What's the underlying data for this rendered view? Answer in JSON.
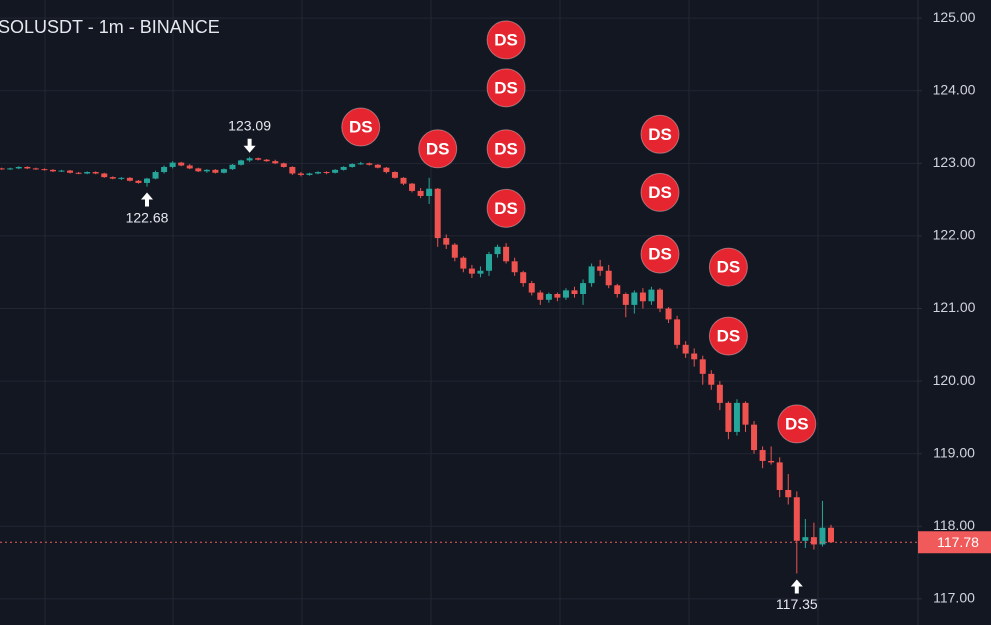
{
  "chart_data": {
    "type": "candlestick",
    "title": "SOLUSDT - 1m - BINANCE",
    "up_color": "#26a69a",
    "down_color": "#ef5350",
    "grid": true,
    "ylim": [
      116.64,
      125.25
    ],
    "yticks": [
      {
        "value": 117,
        "label": "117.00"
      },
      {
        "value": 118,
        "label": "118.00"
      },
      {
        "value": 119,
        "label": "119.00"
      },
      {
        "value": 120,
        "label": "120.00"
      },
      {
        "value": 121,
        "label": "121.00"
      },
      {
        "value": 122,
        "label": "122.00"
      },
      {
        "value": 123,
        "label": "123.00"
      },
      {
        "value": 124,
        "label": "124.00"
      },
      {
        "value": 125,
        "label": "125.00"
      }
    ],
    "open": [
      122.93,
      122.92,
      122.93,
      122.95,
      122.93,
      122.92,
      122.91,
      122.89,
      122.9,
      122.87,
      122.86,
      122.88,
      122.86,
      122.81,
      122.79,
      122.8,
      122.76,
      122.73,
      122.79,
      122.88,
      122.95,
      123.01,
      122.97,
      122.93,
      122.89,
      122.91,
      122.87,
      122.92,
      122.98,
      123.04,
      123.07,
      123.05,
      123.03,
      123.0,
      122.95,
      122.86,
      122.84,
      122.86,
      122.88,
      122.87,
      122.91,
      122.95,
      122.99,
      123.0,
      122.98,
      122.94,
      122.88,
      122.8,
      122.72,
      122.62,
      122.55,
      122.65,
      121.97,
      121.88,
      121.7,
      121.55,
      121.48,
      121.52,
      121.75,
      121.85,
      121.65,
      121.5,
      121.35,
      121.22,
      121.12,
      121.2,
      121.15,
      121.25,
      121.2,
      121.35,
      121.58,
      121.52,
      121.32,
      121.2,
      121.05,
      121.22,
      121.1,
      121.26,
      121.0,
      120.85,
      120.5,
      120.38,
      120.3,
      120.1,
      119.95,
      119.7,
      119.3,
      119.7,
      119.4,
      119.05,
      118.9,
      118.88,
      118.5,
      118.4,
      117.8,
      117.85,
      117.75,
      117.98
    ],
    "high": [
      122.94,
      122.94,
      122.96,
      122.96,
      122.94,
      122.93,
      122.92,
      122.91,
      122.91,
      122.88,
      122.89,
      122.89,
      122.87,
      122.82,
      122.81,
      122.81,
      122.77,
      122.8,
      122.9,
      122.97,
      123.03,
      123.02,
      122.99,
      122.94,
      122.92,
      122.92,
      122.93,
      122.99,
      123.05,
      123.09,
      123.08,
      123.06,
      123.05,
      123.01,
      122.96,
      122.88,
      122.87,
      122.89,
      122.89,
      122.92,
      122.96,
      123.0,
      123.02,
      123.01,
      122.99,
      122.95,
      122.89,
      122.81,
      122.73,
      122.66,
      122.8,
      122.66,
      122.02,
      121.9,
      121.72,
      121.6,
      121.58,
      121.78,
      121.88,
      121.9,
      121.7,
      121.52,
      121.38,
      121.25,
      121.22,
      121.22,
      121.28,
      121.3,
      121.4,
      121.62,
      121.67,
      121.6,
      121.34,
      121.22,
      121.25,
      121.28,
      121.3,
      121.28,
      121.02,
      120.9,
      120.55,
      120.45,
      120.35,
      120.15,
      120.0,
      119.72,
      119.75,
      119.72,
      119.45,
      119.1,
      119.1,
      118.95,
      118.72,
      118.48,
      118.1,
      118.05,
      118.35,
      118.02
    ],
    "low": [
      122.91,
      122.91,
      122.92,
      122.92,
      122.91,
      122.9,
      122.88,
      122.88,
      122.86,
      122.85,
      122.85,
      122.85,
      122.8,
      122.78,
      122.77,
      122.75,
      122.72,
      122.68,
      122.78,
      122.86,
      122.93,
      122.96,
      122.92,
      122.88,
      122.87,
      122.86,
      122.86,
      122.91,
      122.97,
      123.02,
      123.04,
      123.02,
      122.99,
      122.94,
      122.84,
      122.82,
      122.83,
      122.85,
      122.85,
      122.86,
      122.9,
      122.94,
      122.98,
      122.97,
      122.93,
      122.86,
      122.79,
      122.7,
      122.6,
      122.52,
      122.44,
      121.85,
      121.82,
      121.65,
      121.5,
      121.42,
      121.43,
      121.45,
      121.7,
      121.62,
      121.45,
      121.3,
      121.18,
      121.05,
      121.08,
      121.1,
      121.12,
      121.15,
      121.05,
      121.3,
      121.45,
      121.28,
      121.15,
      120.88,
      120.93,
      121.0,
      121.05,
      120.95,
      120.8,
      120.45,
      120.32,
      120.2,
      119.95,
      119.88,
      119.6,
      119.2,
      119.25,
      119.3,
      119.0,
      118.8,
      118.85,
      118.4,
      118.3,
      117.35,
      117.7,
      117.68,
      117.72,
      117.78
    ],
    "close": [
      122.92,
      122.93,
      122.95,
      122.93,
      122.92,
      122.91,
      122.89,
      122.9,
      122.87,
      122.86,
      122.88,
      122.86,
      122.81,
      122.79,
      122.8,
      122.76,
      122.73,
      122.79,
      122.88,
      122.95,
      123.01,
      122.97,
      122.93,
      122.89,
      122.91,
      122.87,
      122.92,
      122.98,
      123.04,
      123.07,
      123.05,
      123.03,
      123.0,
      122.95,
      122.86,
      122.84,
      122.86,
      122.88,
      122.87,
      122.91,
      122.95,
      122.99,
      123.0,
      122.98,
      122.94,
      122.88,
      122.8,
      122.72,
      122.62,
      122.55,
      122.65,
      121.97,
      121.88,
      121.7,
      121.55,
      121.48,
      121.52,
      121.75,
      121.85,
      121.65,
      121.5,
      121.35,
      121.22,
      121.12,
      121.2,
      121.15,
      121.25,
      121.2,
      121.35,
      121.58,
      121.52,
      121.32,
      121.2,
      121.05,
      121.22,
      121.1,
      121.26,
      121.0,
      120.85,
      120.5,
      120.38,
      120.3,
      120.1,
      119.95,
      119.7,
      119.3,
      119.7,
      119.4,
      119.05,
      118.9,
      118.88,
      118.5,
      118.4,
      117.8,
      117.85,
      117.75,
      117.98,
      117.78
    ],
    "annotations": [
      {
        "index": 17,
        "value": 122.68,
        "kind": "low"
      },
      {
        "index": 29,
        "value": 123.09,
        "kind": "high"
      },
      {
        "index": 93,
        "value": 117.35,
        "kind": "low"
      }
    ],
    "markers": {
      "label": "DS",
      "color": "#e5252f",
      "points": [
        {
          "index": 42,
          "price": 123.5
        },
        {
          "index": 51,
          "price": 123.2
        },
        {
          "index": 59,
          "price": 124.7
        },
        {
          "index": 59,
          "price": 124.04
        },
        {
          "index": 59,
          "price": 123.2
        },
        {
          "index": 59,
          "price": 122.38
        },
        {
          "index": 77,
          "price": 123.4
        },
        {
          "index": 77,
          "price": 122.6
        },
        {
          "index": 77,
          "price": 121.75
        },
        {
          "index": 85,
          "price": 121.57
        },
        {
          "index": 85,
          "price": 120.62
        },
        {
          "index": 93,
          "price": 119.41
        }
      ]
    },
    "last_price": {
      "value": 117.78,
      "label": "117.78",
      "color": "#f05a5a"
    }
  }
}
